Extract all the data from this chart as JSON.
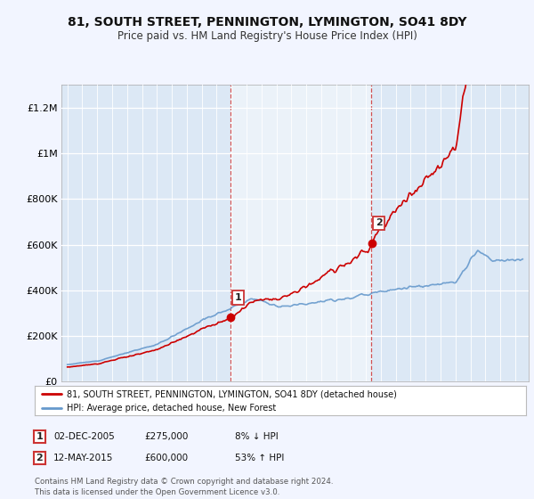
{
  "title": "81, SOUTH STREET, PENNINGTON, LYMINGTON, SO41 8DY",
  "subtitle": "Price paid vs. HM Land Registry's House Price Index (HPI)",
  "bg_color": "#f2f5ff",
  "plot_bg_color": "#dce8f5",
  "red_line_label": "81, SOUTH STREET, PENNINGTON, LYMINGTON, SO41 8DY (detached house)",
  "blue_line_label": "HPI: Average price, detached house, New Forest",
  "annotation1_date": "02-DEC-2005",
  "annotation1_price": "£275,000",
  "annotation1_pct": "8% ↓ HPI",
  "annotation2_date": "12-MAY-2015",
  "annotation2_price": "£600,000",
  "annotation2_pct": "53% ↑ HPI",
  "footer": "Contains HM Land Registry data © Crown copyright and database right 2024.\nThis data is licensed under the Open Government Licence v3.0.",
  "ylim": [
    0,
    1300000
  ],
  "yticks": [
    0,
    200000,
    400000,
    600000,
    800000,
    1000000,
    1200000
  ],
  "ytick_labels": [
    "£0",
    "£200K",
    "£400K",
    "£600K",
    "£800K",
    "£1M",
    "£1.2M"
  ],
  "sale1_year": 2005.92,
  "sale1_price": 275000,
  "sale2_year": 2015.37,
  "sale2_price": 600000,
  "red_color": "#cc0000",
  "blue_color": "#6699cc",
  "shade_color": "#d8e8f5"
}
